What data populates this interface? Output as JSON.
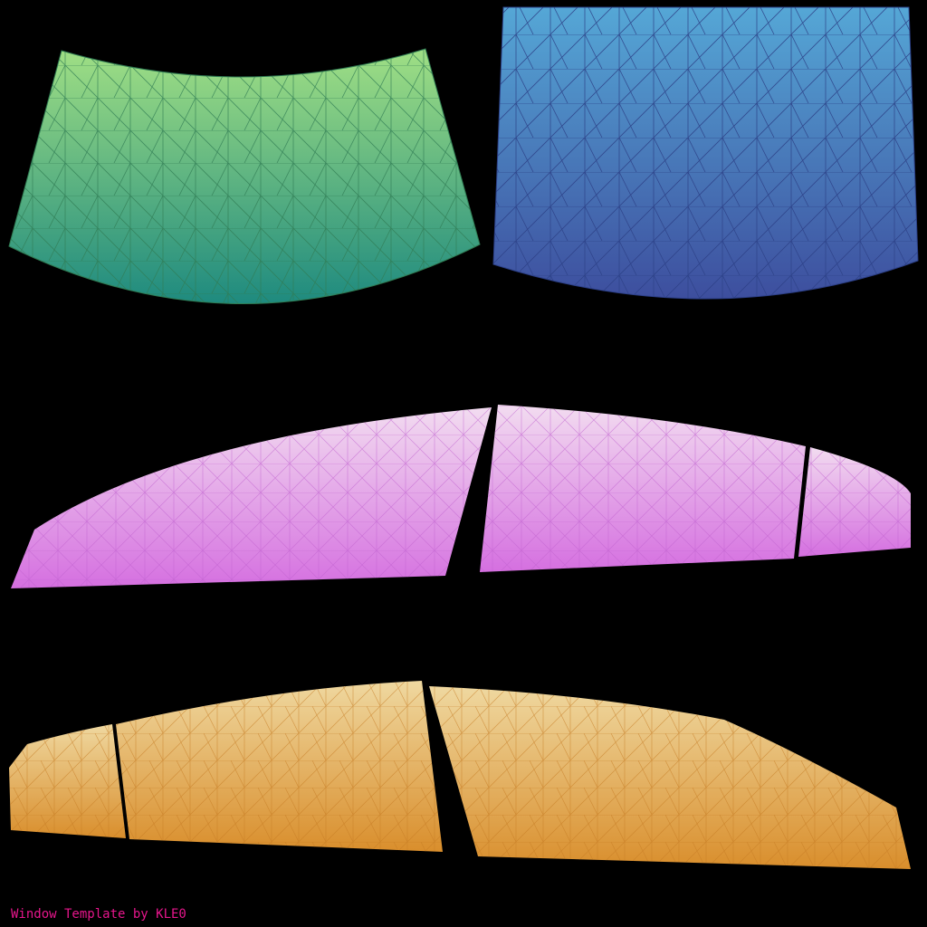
{
  "credit_text": "Window Template by KLE0",
  "colors": {
    "background": "#000000",
    "credit": "#e6168c",
    "windshield": {
      "top": "#a0df84",
      "bottom": "#1e8a7f",
      "wire": "#2f7a52"
    },
    "rear_window": {
      "top": "#55a7d6",
      "bottom": "#3d4e9e",
      "wire": "#2c3f86"
    },
    "side_windows_upper": {
      "top": "#f2dcf0",
      "bottom": "#d56fe0",
      "wire": "#c060cf"
    },
    "side_windows_lower": {
      "top": "#efd8a0",
      "bottom": "#d98e2c",
      "wire": "#c57a22"
    }
  },
  "panels": [
    {
      "name": "windshield",
      "style": "wireframe-mesh",
      "gradient_direction": "vertical"
    },
    {
      "name": "rear-window",
      "style": "wireframe-mesh",
      "gradient_direction": "vertical"
    },
    {
      "name": "side-window-front-a",
      "style": "wireframe-mesh"
    },
    {
      "name": "side-window-rear-a",
      "style": "wireframe-mesh"
    },
    {
      "name": "side-window-quarter-a",
      "style": "wireframe-mesh"
    },
    {
      "name": "side-window-quarter-b",
      "style": "wireframe-mesh"
    },
    {
      "name": "side-window-rear-b",
      "style": "wireframe-mesh"
    },
    {
      "name": "side-window-front-b",
      "style": "wireframe-mesh"
    }
  ]
}
